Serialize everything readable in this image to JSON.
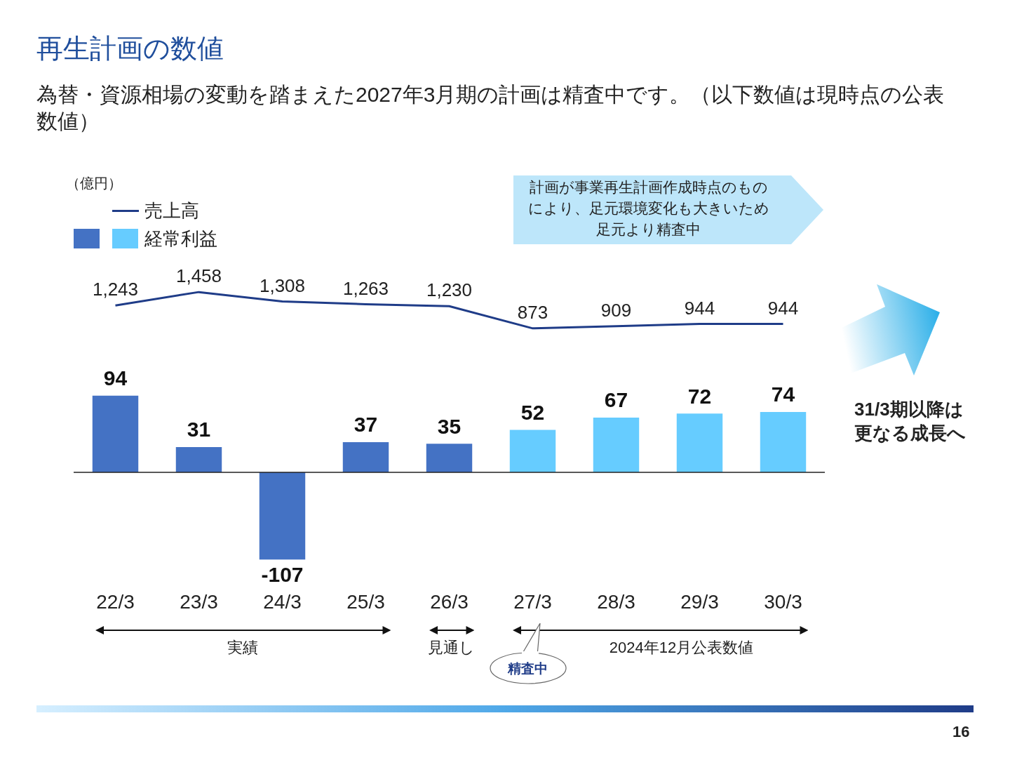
{
  "chart_data": [
    {
      "type": "line",
      "title": "再生計画の数値",
      "subtitle": "為替・資源相場の変動を踏まえた2027年3月期の計画は精査中です。（以下数値は現時点の公表数値）",
      "categories": [
        null,
        null,
        null,
        null,
        null,
        null,
        null,
        null,
        null
      ],
      "series": [
        {
          "name": "売上高",
          "color": "#1f3c88",
          "values": [
            1243,
            1458,
            1308,
            1263,
            1230,
            873,
            909,
            944,
            944
          ],
          "value_labels": [
            "1,243",
            "1,458",
            "1,308",
            "1,263",
            "1,230",
            "873",
            "909",
            "944",
            "944"
          ]
        }
      ],
      "tick_labels": false,
      "legend": "top left",
      "marker": "none",
      "grid": false
    },
    {
      "type": "bar",
      "categories": [
        "22/3",
        "23/3",
        "24/3",
        "25/3",
        "26/3",
        "27/3",
        "28/3",
        "29/3",
        "30/3"
      ],
      "series": [
        {
          "name": "経常利益",
          "values": [
            94,
            31,
            -107,
            37,
            35,
            52,
            67,
            72,
            74
          ],
          "colors": [
            "#4472c4",
            "#4472c4",
            "#4472c4",
            "#4472c4",
            "#4472c4",
            "#66ccff",
            "#66ccff",
            "#66ccff",
            "#66ccff"
          ]
        }
      ],
      "data_labels": true,
      "tick_labels": "x",
      "legend": "top left",
      "grid": false,
      "annotations": [
        "（億円）",
        "計画が事業再生計画作成時点のものにより、足元環境変化も大きいため足元より精査中",
        "31/3期以降は更なる成長へ",
        "実績",
        "見通し",
        "2024年12月公表数値",
        "精査中",
        "16"
      ]
    }
  ]
}
